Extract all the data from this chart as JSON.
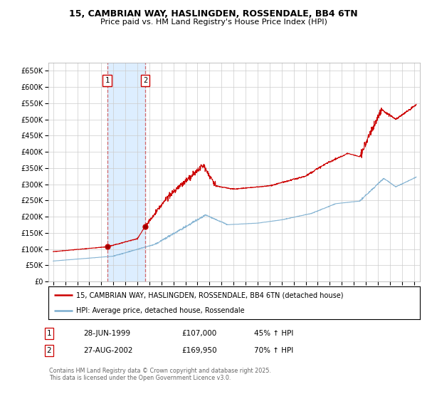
{
  "title_line1": "15, CAMBRIAN WAY, HASLINGDEN, ROSSENDALE, BB4 6TN",
  "title_line2": "Price paid vs. HM Land Registry's House Price Index (HPI)",
  "ylabel_ticks": [
    "£0",
    "£50K",
    "£100K",
    "£150K",
    "£200K",
    "£250K",
    "£300K",
    "£350K",
    "£400K",
    "£450K",
    "£500K",
    "£550K",
    "£600K",
    "£650K"
  ],
  "ytick_values": [
    0,
    50000,
    100000,
    150000,
    200000,
    250000,
    300000,
    350000,
    400000,
    450000,
    500000,
    550000,
    600000,
    650000
  ],
  "purchase1_date": 1999.49,
  "purchase1_price": 107000,
  "purchase1_label": "1",
  "purchase2_date": 2002.66,
  "purchase2_price": 169950,
  "purchase2_label": "2",
  "red_line_color": "#cc0000",
  "blue_line_color": "#7aadcf",
  "highlight_fill": "#ddeeff",
  "grid_color": "#cccccc",
  "background_color": "#ffffff",
  "legend_label_red": "15, CAMBRIAN WAY, HASLINGDEN, ROSSENDALE, BB4 6TN (detached house)",
  "legend_label_blue": "HPI: Average price, detached house, Rossendale",
  "footer_text": "Contains HM Land Registry data © Crown copyright and database right 2025.\nThis data is licensed under the Open Government Licence v3.0.",
  "table_row1": [
    "1",
    "28-JUN-1999",
    "£107,000",
    "45% ↑ HPI"
  ],
  "table_row2": [
    "2",
    "27-AUG-2002",
    "£169,950",
    "70% ↑ HPI"
  ]
}
